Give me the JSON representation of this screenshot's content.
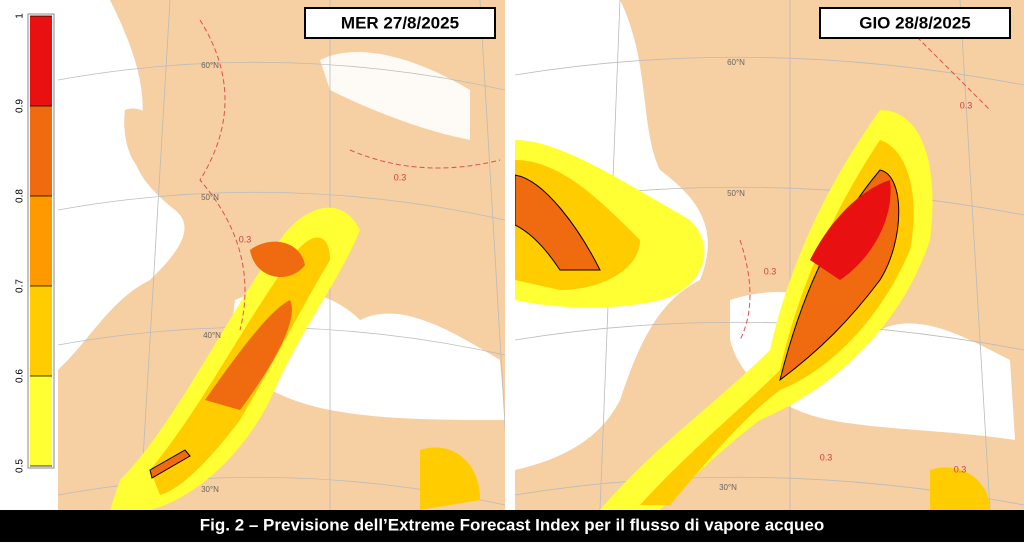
{
  "panels": [
    {
      "date": "MER 27/8/2025",
      "lat_labels": [
        "60°N",
        "50°N",
        "40°N",
        "30°N"
      ],
      "contour_labels": [
        "0.3",
        "0.3"
      ]
    },
    {
      "date": "GIO 28/8/2025",
      "lat_labels": [
        "60°N",
        "50°N",
        "30°N"
      ],
      "contour_labels": [
        "0.3",
        "0.3",
        "0.3",
        "0.3"
      ]
    }
  ],
  "colorbar": {
    "ticks": [
      0.5,
      0.6,
      0.7,
      0.8,
      0.9,
      1
    ],
    "colors": [
      "#ffff33",
      "#ffcc00",
      "#ff9900",
      "#f06a10",
      "#e81010"
    ]
  },
  "caption": "Fig. 2 – Previsione dell’Extreme Forecast Index per il flusso di vapore acqueo"
}
